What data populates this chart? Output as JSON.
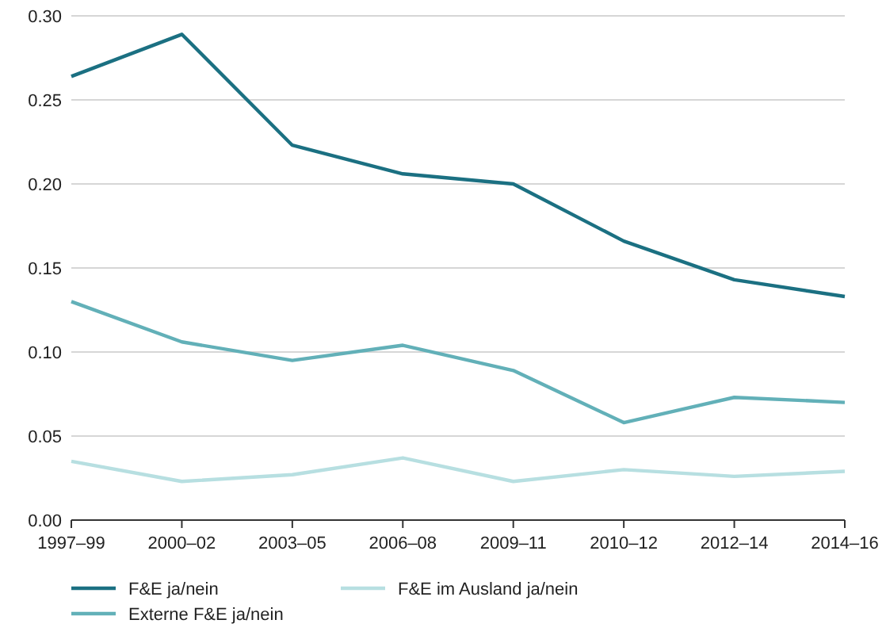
{
  "chart_data": {
    "type": "line",
    "categories": [
      "1997–99",
      "2000–02",
      "2003–05",
      "2006–08",
      "2009–11",
      "2010–12",
      "2012–14",
      "2014–16"
    ],
    "series": [
      {
        "name": "F&E ja/nein",
        "color": "#1b7082",
        "values": [
          0.264,
          0.289,
          0.223,
          0.206,
          0.2,
          0.166,
          0.143,
          0.133
        ]
      },
      {
        "name": "Externe F&E ja/nein",
        "color": "#62b0b8",
        "values": [
          0.13,
          0.106,
          0.095,
          0.104,
          0.089,
          0.058,
          0.073,
          0.07
        ]
      },
      {
        "name": "F&E im Ausland ja/nein",
        "color": "#b7dfe1",
        "values": [
          0.035,
          0.023,
          0.027,
          0.037,
          0.023,
          0.03,
          0.026,
          0.029
        ]
      }
    ],
    "ylim": [
      0,
      0.3
    ],
    "yticks": [
      {
        "value": 0,
        "label": "0.00"
      },
      {
        "value": 0.05,
        "label": "0.05"
      },
      {
        "value": 0.1,
        "label": "0.10"
      },
      {
        "value": 0.15,
        "label": "0.15"
      },
      {
        "value": 0.2,
        "label": "0.20"
      },
      {
        "value": 0.25,
        "label": "0.25"
      },
      {
        "value": 0.3,
        "label": "0.30"
      }
    ],
    "grid": "y",
    "legend": "bottom",
    "marker": "none",
    "line_style": "solid"
  }
}
